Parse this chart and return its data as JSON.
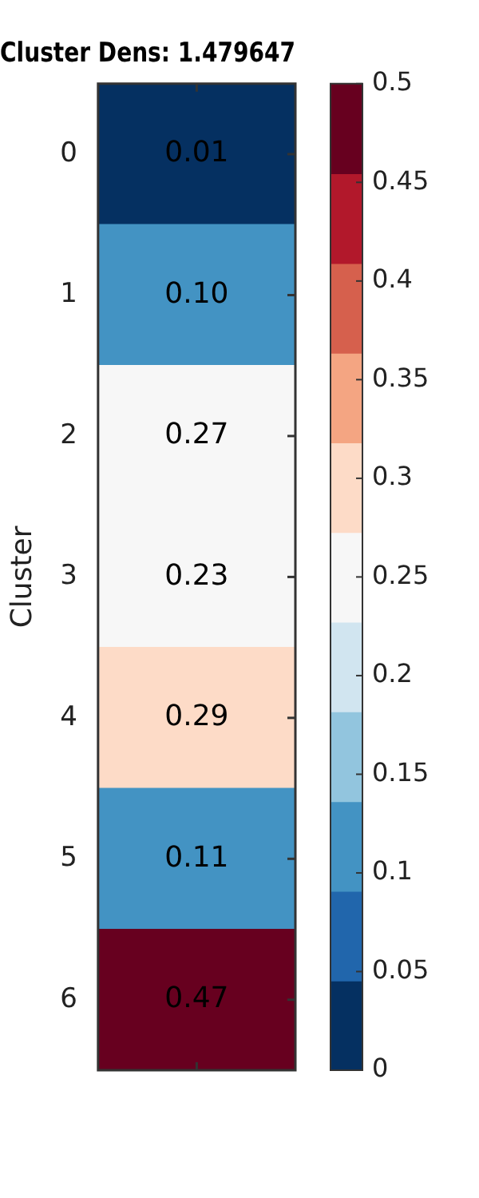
{
  "chart_data": {
    "type": "heatmap",
    "title": "Cluster Dens: 1.479647",
    "ylabel": "Cluster",
    "categories": [
      null
    ],
    "y_categories": [
      "0",
      "1",
      "2",
      "3",
      "4",
      "5",
      "6"
    ],
    "cells": [
      [
        0.01
      ],
      [
        0.1
      ],
      [
        0.27
      ],
      [
        0.23
      ],
      [
        0.29
      ],
      [
        0.11
      ],
      [
        0.47
      ]
    ],
    "cell_labels": [
      [
        "0.01"
      ],
      [
        "0.10"
      ],
      [
        "0.27"
      ],
      [
        "0.23"
      ],
      [
        "0.29"
      ],
      [
        "0.11"
      ],
      [
        "0.47"
      ]
    ],
    "colors": [
      "#053061",
      "#2166ac",
      "#4393c3",
      "#92c5de",
      "#d1e5f0",
      "#f7f7f7",
      "#fddbc7",
      "#f4a582",
      "#d6604d",
      "#b2182b",
      "#67001f"
    ],
    "clim": [
      0,
      0.5
    ],
    "cticks": [
      0,
      0.05,
      0.1,
      0.15,
      0.2,
      0.25,
      0.3,
      0.35,
      0.4,
      0.45,
      0.5
    ]
  }
}
